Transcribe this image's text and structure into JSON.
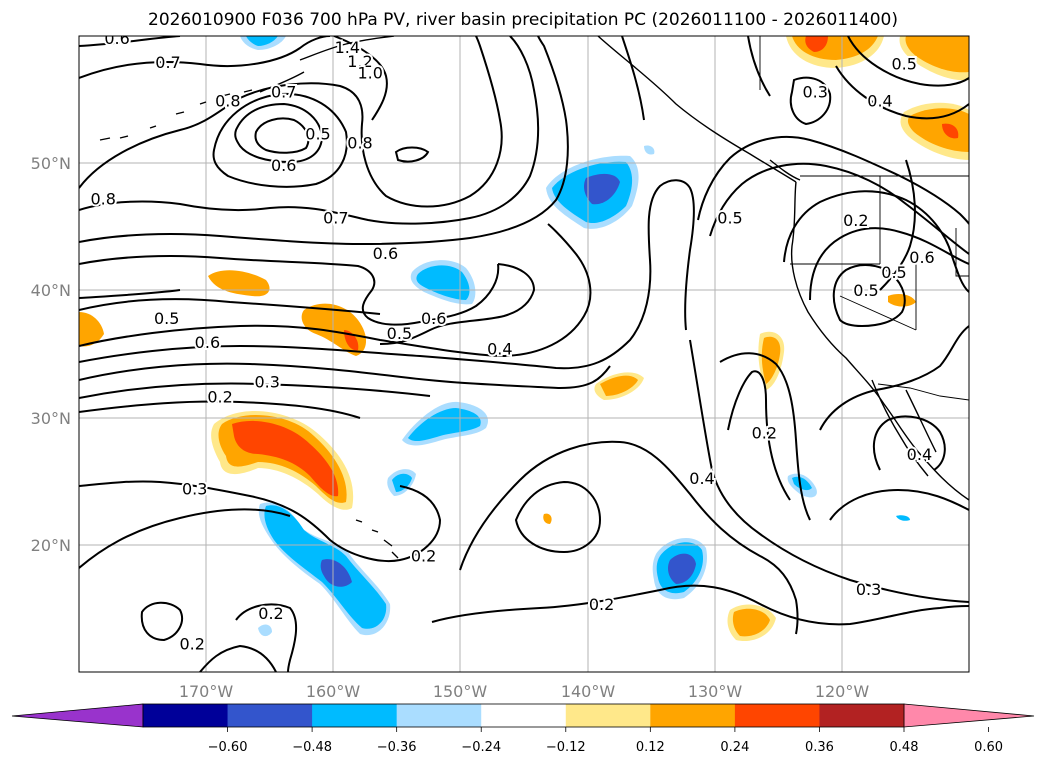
{
  "title": "2026010900 F036 700 hPa PV, river basin precipitation PC (2026011100 - 2026011400)",
  "map": {
    "projection": "PlateCarree",
    "lon_range": [
      -180,
      -110
    ],
    "lat_range": [
      10,
      60
    ],
    "grid": true,
    "lon_ticks": [
      {
        "value": -170,
        "label": "170°W"
      },
      {
        "value": -160,
        "label": "160°W"
      },
      {
        "value": -150,
        "label": "150°W"
      },
      {
        "value": -140,
        "label": "140°W"
      },
      {
        "value": -130,
        "label": "130°W"
      },
      {
        "value": -120,
        "label": "120°W"
      }
    ],
    "lat_ticks": [
      {
        "value": 20,
        "label": "20°N"
      },
      {
        "value": 30,
        "label": "30°N"
      },
      {
        "value": 40,
        "label": "40°N"
      },
      {
        "value": 50,
        "label": "50°N"
      }
    ],
    "contour_labels": [
      {
        "text": "0.6",
        "lon": -177,
        "lat": 59.8
      },
      {
        "text": "0.7",
        "lon": -173,
        "lat": 57.9
      },
      {
        "text": "1.4",
        "lon": -158.9,
        "lat": 59.1
      },
      {
        "text": "1.2",
        "lon": -157.9,
        "lat": 58.0
      },
      {
        "text": "1.0",
        "lon": -157.1,
        "lat": 57.1
      },
      {
        "text": "0.8",
        "lon": -168.3,
        "lat": 54.9
      },
      {
        "text": "0.7",
        "lon": -163.9,
        "lat": 55.6
      },
      {
        "text": "0.5",
        "lon": -161.2,
        "lat": 52.3
      },
      {
        "text": "0.8",
        "lon": -157.9,
        "lat": 51.6
      },
      {
        "text": "0.6",
        "lon": -163.9,
        "lat": 49.8
      },
      {
        "text": "0.8",
        "lon": -178.1,
        "lat": 47.2
      },
      {
        "text": "0.7",
        "lon": -159.8,
        "lat": 45.7
      },
      {
        "text": "0.6",
        "lon": -155.9,
        "lat": 42.9
      },
      {
        "text": "0.5",
        "lon": -173.1,
        "lat": 37.8
      },
      {
        "text": "0.6",
        "lon": -169.9,
        "lat": 35.9
      },
      {
        "text": "0.6",
        "lon": -152.1,
        "lat": 37.8
      },
      {
        "text": "0.5",
        "lon": -154.8,
        "lat": 36.6
      },
      {
        "text": "0.4",
        "lon": -146.9,
        "lat": 35.4
      },
      {
        "text": "0.3",
        "lon": -165.2,
        "lat": 32.8
      },
      {
        "text": "0.2",
        "lon": -168.9,
        "lat": 31.6
      },
      {
        "text": "0.3",
        "lon": -170.9,
        "lat": 24.4
      },
      {
        "text": "0.2",
        "lon": -152.9,
        "lat": 19.1
      },
      {
        "text": "0.2",
        "lon": -164.9,
        "lat": 14.6
      },
      {
        "text": "0.2",
        "lon": -171.1,
        "lat": 12.2
      },
      {
        "text": "0.2",
        "lon": -138.9,
        "lat": 15.3
      },
      {
        "text": "0.4",
        "lon": -131.0,
        "lat": 25.2
      },
      {
        "text": "0.2",
        "lon": -126.1,
        "lat": 28.8
      },
      {
        "text": "0.3",
        "lon": -117.9,
        "lat": 16.5
      },
      {
        "text": "0.4",
        "lon": -113.9,
        "lat": 27.1
      },
      {
        "text": "0.5",
        "lon": -128.8,
        "lat": 45.7
      },
      {
        "text": "0.3",
        "lon": -122.1,
        "lat": 55.6
      },
      {
        "text": "0.4",
        "lon": -117.0,
        "lat": 54.9
      },
      {
        "text": "0.5",
        "lon": -115.1,
        "lat": 57.8
      },
      {
        "text": "0.2",
        "lon": -118.9,
        "lat": 45.5
      },
      {
        "text": "0.5",
        "lon": -115.9,
        "lat": 41.4
      },
      {
        "text": "0.6",
        "lon": -113.7,
        "lat": 42.6
      },
      {
        "text": "0.5",
        "lon": -118.1,
        "lat": 40.0
      }
    ]
  },
  "colorbar": {
    "colors": [
      "#9933cc",
      "#000099",
      "#3355cc",
      "#00bbff",
      "#aaddff",
      "#ffffff",
      "#ffe88a",
      "#ffa500",
      "#ff4500",
      "#b22222",
      "#ff88aa"
    ],
    "ticks": [
      "−0.60",
      "−0.48",
      "−0.36",
      "−0.24",
      "−0.12",
      "0.12",
      "0.24",
      "0.36",
      "0.48",
      "0.60"
    ]
  }
}
